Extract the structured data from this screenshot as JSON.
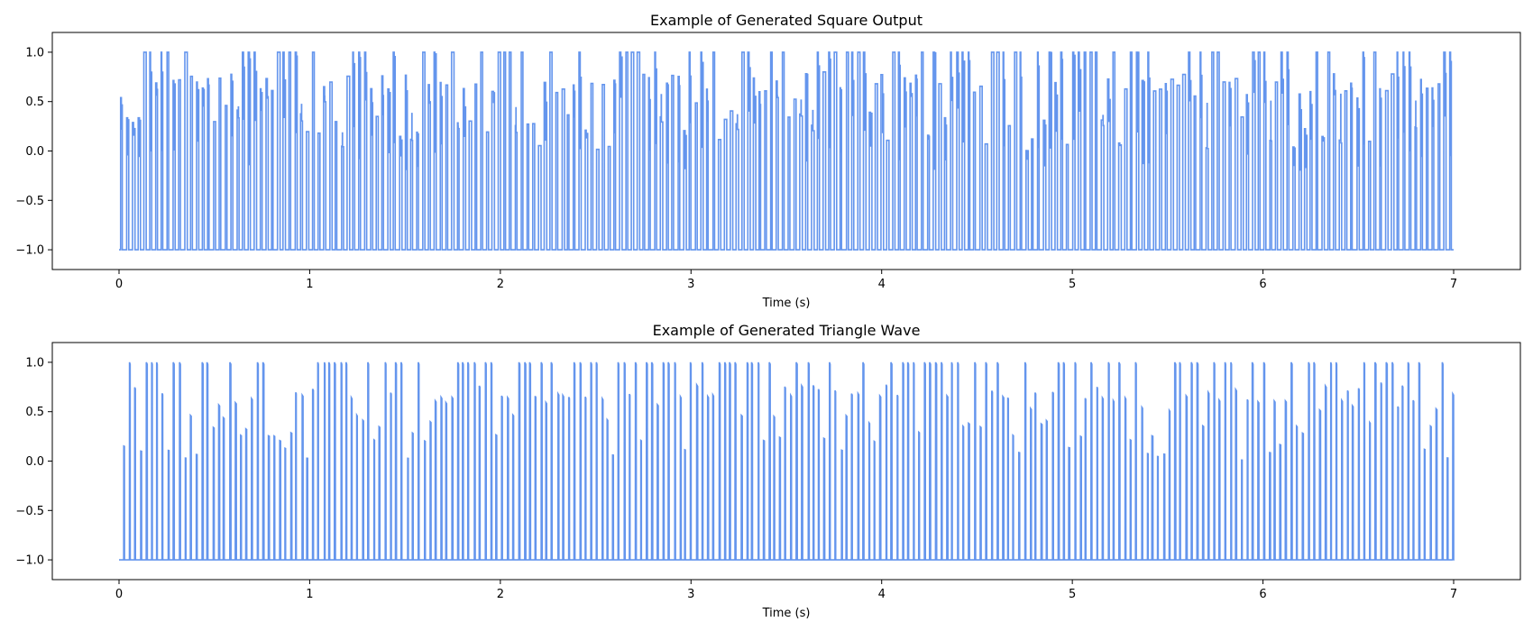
{
  "figure": {
    "background": "#ffffff",
    "line_color": "#6495ed"
  },
  "chart_data": [
    {
      "type": "line",
      "title": "Example of Generated Square Output",
      "xlabel": "Time (s)",
      "ylabel": "",
      "xlim": [
        -0.35,
        7.35
      ],
      "ylim": [
        -1.2,
        1.2
      ],
      "xticks": [
        0,
        1,
        2,
        3,
        4,
        5,
        6,
        7
      ],
      "yticks": [
        -1.0,
        -0.5,
        0.0,
        0.5,
        1.0
      ],
      "xtick_labels": [
        "0",
        "1",
        "2",
        "3",
        "4",
        "5",
        "6",
        "7"
      ],
      "ytick_labels": [
        "−1.0",
        "−0.5",
        "0.0",
        "0.5",
        "1.0"
      ],
      "grid": false,
      "legend": "none",
      "series": [
        {
          "waveform": "square",
          "t_start": 0.0,
          "t_end": 7.0,
          "baseline": -1.0,
          "max_amplitude": 1.0,
          "approx_pulse_count": 230,
          "color": "#6495ed"
        }
      ]
    },
    {
      "type": "line",
      "title": "Example of Generated Triangle Wave",
      "xlabel": "Time (s)",
      "ylabel": "",
      "xlim": [
        -0.35,
        7.35
      ],
      "ylim": [
        -1.2,
        1.2
      ],
      "xticks": [
        0,
        1,
        2,
        3,
        4,
        5,
        6,
        7
      ],
      "yticks": [
        -1.0,
        -0.5,
        0.0,
        0.5,
        1.0
      ],
      "xtick_labels": [
        "0",
        "1",
        "2",
        "3",
        "4",
        "5",
        "6",
        "7"
      ],
      "ytick_labels": [
        "−1.0",
        "−0.5",
        "0.0",
        "0.5",
        "1.0"
      ],
      "grid": false,
      "legend": "none",
      "series": [
        {
          "waveform": "triangle",
          "t_start": 0.0,
          "t_end": 7.0,
          "baseline": -1.0,
          "max_amplitude": 1.0,
          "approx_pulse_count": 240,
          "color": "#6495ed"
        }
      ]
    }
  ]
}
